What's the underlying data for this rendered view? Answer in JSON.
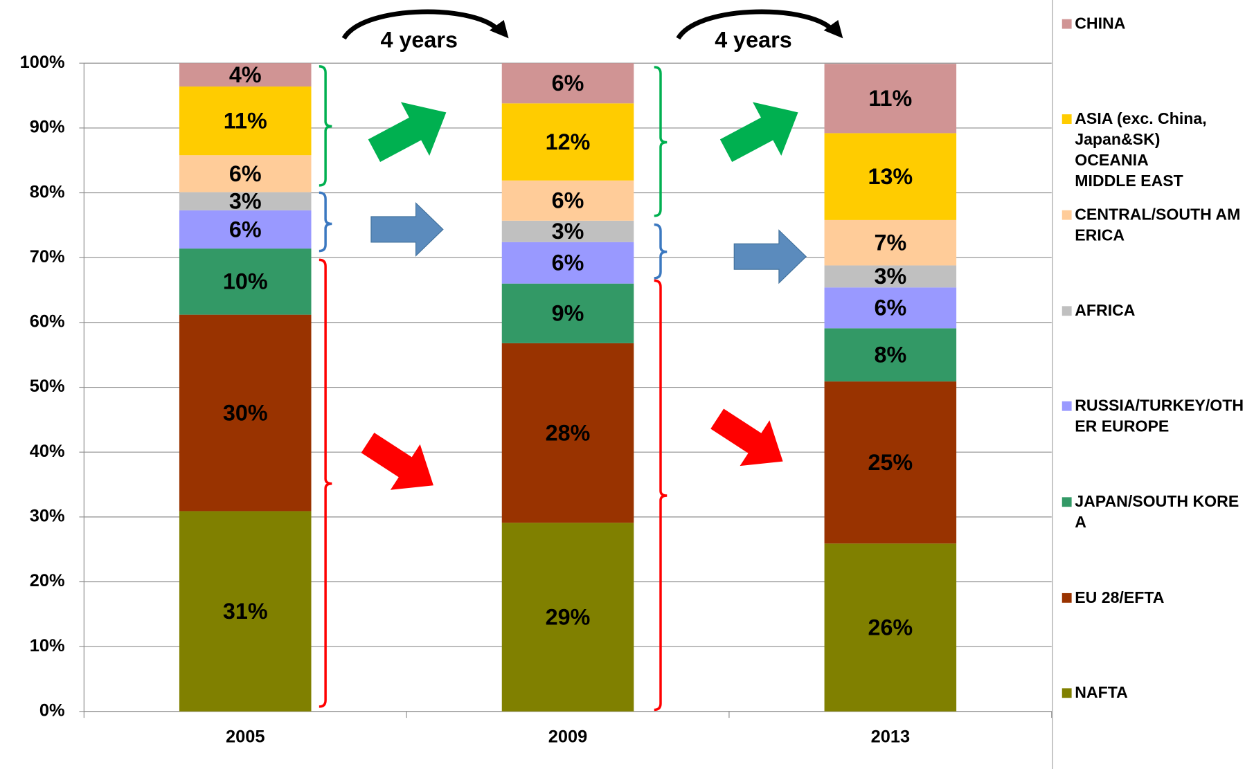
{
  "chart_data": {
    "type": "stacked_bar",
    "categories": [
      "2005",
      "2009",
      "2013"
    ],
    "series": [
      {
        "name": "NAFTA",
        "color": "#808000",
        "values": [
          30.9,
          29.1,
          25.9
        ],
        "value_labels": [
          "31%",
          "29%",
          "26%"
        ]
      },
      {
        "name": "EU 28/EFTA",
        "color": "#993300",
        "values": [
          30.3,
          27.7,
          25.0
        ],
        "value_labels": [
          "30%",
          "28%",
          "25%"
        ]
      },
      {
        "name": "JAPAN/SOUTH KOREA",
        "color": "#339966",
        "values": [
          10.2,
          9.2,
          8.2
        ],
        "value_labels": [
          "10%",
          "9%",
          "8%"
        ]
      },
      {
        "name": "RUSSIA/TURKEY/OTHER EUROPE",
        "color": "#9999ff",
        "values": [
          5.9,
          6.4,
          6.3
        ],
        "value_labels": [
          "6%",
          "6%",
          "6%"
        ]
      },
      {
        "name": "AFRICA",
        "color": "#c0c0c0",
        "values": [
          2.8,
          3.3,
          3.4
        ],
        "value_labels": [
          "3%",
          "3%",
          "3%"
        ]
      },
      {
        "name": "CENTRAL/SOUTH AMERICA",
        "color": "#ffcc99",
        "values": [
          5.7,
          6.2,
          7.0
        ],
        "value_labels": [
          "6%",
          "6%",
          "7%"
        ]
      },
      {
        "name": "ASIA (exc. China,\nJapan&SK)\nOCEANIA\nMIDDLE EAST",
        "color": "#ffcc00",
        "values": [
          10.6,
          11.9,
          13.4
        ],
        "value_labels": [
          "11%",
          "12%",
          "13%"
        ]
      },
      {
        "name": "CHINA",
        "color": "#d09494",
        "values": [
          3.6,
          6.2,
          10.7
        ],
        "value_labels": [
          "4%",
          "6%",
          "11%"
        ]
      }
    ],
    "ylim": [
      0,
      100
    ],
    "yticks": [
      {
        "value": 0,
        "label": "0%"
      },
      {
        "value": 10,
        "label": "10%"
      },
      {
        "value": 20,
        "label": "20%"
      },
      {
        "value": 30,
        "label": "30%"
      },
      {
        "value": 40,
        "label": "40%"
      },
      {
        "value": 50,
        "label": "50%"
      },
      {
        "value": 60,
        "label": "60%"
      },
      {
        "value": 70,
        "label": "70%"
      },
      {
        "value": 80,
        "label": "80%"
      },
      {
        "value": 90,
        "label": "90%"
      },
      {
        "value": 100,
        "label": "100%"
      }
    ],
    "grid": true,
    "legend": "right",
    "annotations": [
      "4 years",
      "4 years"
    ]
  }
}
